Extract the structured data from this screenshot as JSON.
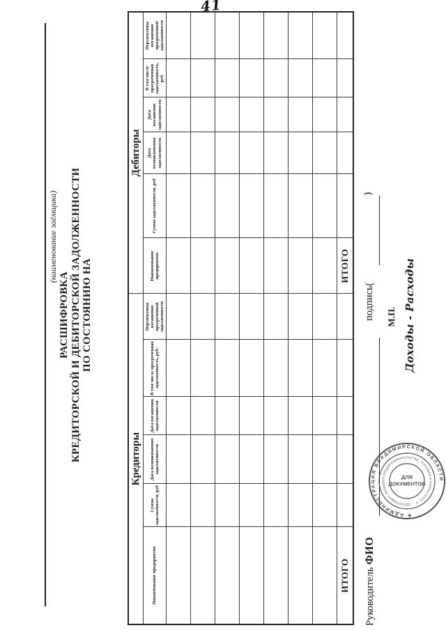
{
  "page_number": "41",
  "colors": {
    "ink": "#1c1c1c",
    "stamp": "#3a3a3a",
    "paper": "#ffffff"
  },
  "form": {
    "name_line_caption": "(наименование заёмщика)",
    "title_line1": "РАСШИФРОВКА",
    "title_line2": "КРЕДИТОРСКОЙ И ДЕБИТОРСКОЙ ЗАДОЛЖЕННОСТИ",
    "title_line3": "ПО СОСТОЯНИЮ НА"
  },
  "table": {
    "sections": [
      {
        "label": "Кредиторы",
        "columns": [
          "Наименование предприятия",
          "Сумма задолженности, руб",
          "Дата возникновения задолженности",
          "Дата погашения задолженности",
          "В том числе просроченная задолженность, руб.",
          "Перспективы погашения просроченной задолженности"
        ],
        "total_label": "ИТОГО"
      },
      {
        "label": "Дебиторы",
        "columns": [
          "Наименование предприятия",
          "Сумма задолженности, руб",
          "Дата возникновения задолженности",
          "Дата погашения задолженности",
          "В том числе просроченная задолженность, руб.",
          "Перспективы погашения просроченной задолженности"
        ],
        "total_label": "ИТОГО"
      }
    ],
    "data_row_count": 7,
    "cells_empty": true
  },
  "signature": {
    "leader_label": "Руководитель",
    "fio_label": "ФИО",
    "sign_label": "подпись(",
    "sign_close": ")",
    "mp_label": "М.П.",
    "handnote": "Доходы - Расходы"
  },
  "stamp": {
    "outer_text": "✳ АДМИНИСТРАЦИЯ ВЛАДИМИРСКОЙ ОБЛАСТИ",
    "inner_text": "ДЕПАРТАМЕНТ РАЗВИТИЯ ПРЕДПРИНИМАТЕЛЬСТВА, ТОРГОВЛИ И СФЕРЫ УСЛУГ ✳",
    "center_line1": "ДЛЯ",
    "center_line2": "ДОКУМЕНТОВ"
  }
}
